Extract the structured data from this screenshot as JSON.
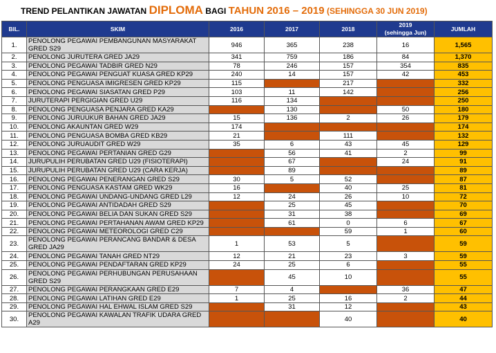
{
  "title": {
    "part1": "TREND PELANTIKAN JAWATAN",
    "part2": "DIPLOMA",
    "part3": "BAGI",
    "part4": "TAHUN 2016 – 2019",
    "part5": "(SEHINGGA 30 JUN 2019)"
  },
  "table": {
    "header": [
      "BIL.",
      "SKIM",
      "2016",
      "2017",
      "2018",
      [
        "2019",
        "(sehingga Jun)"
      ],
      "JUMLAH"
    ],
    "rows": [
      [
        "1.",
        "PENOLONG PEGAWAI PEMBANGUNAN MASYARAKAT GRED S29",
        "946",
        "365",
        "238",
        "16",
        "1,565"
      ],
      [
        "2.",
        "PENOLONG JURUTERA GRED JA29",
        "341",
        "759",
        "186",
        "84",
        "1,370"
      ],
      [
        "3.",
        "PENOLONG PEGAWAI TADBIR GRED N29",
        "78",
        "246",
        "157",
        "354",
        "835"
      ],
      [
        "4.",
        "PENOLONG PEGAWAI PENGUAT KUASA GRED KP29",
        "240",
        "14",
        "157",
        "42",
        "453"
      ],
      [
        "5.",
        "PENOLONG PENGUASA IMIGRESEN GRED KP29",
        "115",
        null,
        "217",
        null,
        "332"
      ],
      [
        "6.",
        "PENOLONG PEGAWAI SIASATAN GRED P29",
        "103",
        "11",
        "142",
        null,
        "256"
      ],
      [
        "7.",
        "JURUTERAPI PERGIGIAN GRED U29",
        "116",
        "134",
        null,
        null,
        "250"
      ],
      [
        "8.",
        "PENOLONG PENGUASA PENJARA GRED KA29",
        null,
        "130",
        null,
        "50",
        "180"
      ],
      [
        "9.",
        "PENOLONG JURUUKUR BAHAN GRED JA29",
        "15",
        "136",
        "2",
        "26",
        "179"
      ],
      [
        "10.",
        "PENOLONG AKAUNTAN GRED W29",
        "174",
        null,
        null,
        null,
        "174"
      ],
      [
        "11.",
        "PENOLONG PENGUASA BOMBA GRED KB29",
        "21",
        null,
        "111",
        null,
        "132"
      ],
      [
        "12.",
        "PENOLONG JURUAUDIT GRED W29",
        "35",
        "6",
        "43",
        "45",
        "129"
      ],
      [
        "13.",
        "PENOLONG PEGAWAI PERTANIAN GRED G29",
        null,
        "56",
        "41",
        "2",
        "99"
      ],
      [
        "14.",
        "JURUPULIH PERUBATAN GRED U29 (FISIOTERAPI)",
        null,
        "67",
        null,
        "24",
        "91"
      ],
      [
        "15.",
        "JURUPULIH PERUBATAN GRED U29 (CARA KERJA)",
        null,
        "89",
        null,
        null,
        "89"
      ],
      [
        "16.",
        "PENOLONG PEGAWAI PENERANGAN GRED S29",
        "30",
        "5",
        "52",
        null,
        "87"
      ],
      [
        "17.",
        "PENOLONG PENGUASA KASTAM GRED WK29",
        "16",
        null,
        "40",
        "25",
        "81"
      ],
      [
        "18.",
        "PENOLONG PEGAWAI UNDANG-UNDANG GRED L29",
        "12",
        "24",
        "26",
        "10",
        "72"
      ],
      [
        "19.",
        "PENOLONG PEGAWAI ANTIDADAH GRED S29",
        null,
        "25",
        "45",
        null,
        "70"
      ],
      [
        "20.",
        "PENOLONG PEGAWAI BELIA DAN SUKAN GRED S29",
        null,
        "31",
        "38",
        null,
        "69"
      ],
      [
        "21.",
        "PENOLONG PEGAWAI PERTAHANAN AWAM GRED KP29",
        null,
        "61",
        "0",
        "6",
        "67"
      ],
      [
        "22.",
        "PENOLONG PEGAWAI METEOROLOGI GRED C29",
        null,
        null,
        "59",
        "1",
        "60"
      ],
      [
        "23.",
        "PENOLONG PEGAWAI PERANCANG BANDAR & DESA GRED JA29",
        "1",
        "53",
        "5",
        null,
        "59"
      ],
      [
        "24.",
        "PENOLONG PEGAWAI TANAH GRED NT29",
        "12",
        "21",
        "23",
        "3",
        "59"
      ],
      [
        "25.",
        "PENOLONG PEGAWAI PENDAFTARAN GRED KP29",
        "24",
        "25",
        "6",
        null,
        "55"
      ],
      [
        "26.",
        "PENOLONG PEGAWAI PERHUBUNGAN PERUSAHAAN GRED S29",
        null,
        "45",
        "10",
        null,
        "55"
      ],
      [
        "27.",
        "PENOLONG PEGAWAI PERANGKAAN GRED E29",
        "7",
        "4",
        null,
        "36",
        "47"
      ],
      [
        "28.",
        "PENOLONG PEGAWAI LATIHAN GRED E29",
        "1",
        "25",
        "16",
        "2",
        "44"
      ],
      [
        "29.",
        "PENOLONG PEGAWAI HAL EHWAL ISLAM GRED S29",
        null,
        "31",
        "12",
        null,
        "43"
      ],
      [
        "30.",
        "PENOLONG PEGAWAI KAWALAN TRAFIK UDARA GRED A29",
        null,
        null,
        "40",
        null,
        "40"
      ]
    ]
  }
}
